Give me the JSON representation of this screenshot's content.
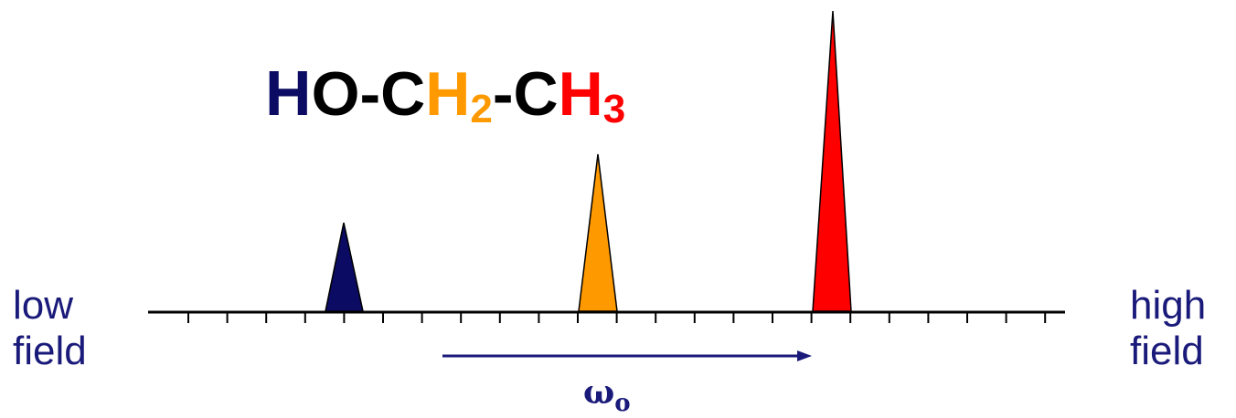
{
  "labels": {
    "low_line1": "low",
    "low_line2": "field",
    "high_line1": "high",
    "high_line2": "field"
  },
  "formula": {
    "parts": [
      {
        "text": "H",
        "color": "#0b0b63",
        "sub": ""
      },
      {
        "text": "O-C",
        "color": "#000000",
        "sub": ""
      },
      {
        "text": "H",
        "color": "#ff9900",
        "sub": "2"
      },
      {
        "text": "-C",
        "color": "#000000",
        "sub": ""
      },
      {
        "text": "H",
        "color": "#ff0000",
        "sub": "3"
      }
    ]
  },
  "arrow_label": {
    "symbol": "ω",
    "subscript": "o"
  },
  "peaks": [
    {
      "name": "HO proton",
      "color": "#0b0b63",
      "relative_height": 1
    },
    {
      "name": "CH2 protons",
      "color": "#ff9900",
      "relative_height": 2
    },
    {
      "name": "CH3 protons",
      "color": "#ff0000",
      "relative_height": 3
    }
  ],
  "colors": {
    "axis": "#000000",
    "arrow": "#1a1a7a",
    "label_text": "#1a1a7a"
  }
}
